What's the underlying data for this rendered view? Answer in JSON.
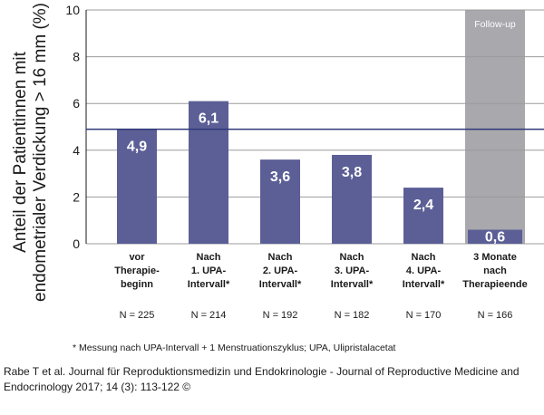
{
  "chart_data": {
    "type": "bar",
    "ylabel_line1": "Anteil der Patientinnen mit",
    "ylabel_line2": "endometrialer Verdickung > 16 mm (%)",
    "ylim": [
      0,
      10
    ],
    "yticks": [
      0,
      2,
      4,
      6,
      8,
      10
    ],
    "reference_line": 4.9,
    "followup_label": "Follow-up",
    "categories": [
      {
        "lines": [
          "vor",
          "Therapie-",
          "beginn"
        ],
        "value": 4.9,
        "label": "4,9",
        "n": "N = 225",
        "followup": false
      },
      {
        "lines": [
          "Nach",
          "1. UPA-",
          "Intervall*"
        ],
        "value": 6.1,
        "label": "6,1",
        "n": "N = 214",
        "followup": false
      },
      {
        "lines": [
          "Nach",
          "2. UPA-",
          "Intervall*"
        ],
        "value": 3.6,
        "label": "3,6",
        "n": "N = 192",
        "followup": false
      },
      {
        "lines": [
          "Nach",
          "3. UPA-",
          "Intervall*"
        ],
        "value": 3.8,
        "label": "3,8",
        "n": "N = 182",
        "followup": false
      },
      {
        "lines": [
          "Nach",
          "4. UPA-",
          "Intervall*"
        ],
        "value": 2.4,
        "label": "2,4",
        "n": "N = 170",
        "followup": false
      },
      {
        "lines": [
          "3 Monate",
          "nach",
          "Therapieende"
        ],
        "value": 0.6,
        "label": "0,6",
        "n": "N = 166",
        "followup": true
      }
    ],
    "footnote": "* Messung nach UPA-Intervall + 1 Menstruationszyklus; UPA, Ulipristalacetat"
  },
  "source": {
    "citation": "Rabe T et al. Journal für Reproduktionsmedizin und Endokrinologie - Journal of Reproductive Medicine and Endocrinology 2017; 14 (3): 113-122 ©"
  },
  "colors": {
    "bar": "#5b5f96",
    "followup_bg": "#a8a8ad",
    "reference_line": "#2e3777",
    "gridline": "#9b9b9b"
  }
}
